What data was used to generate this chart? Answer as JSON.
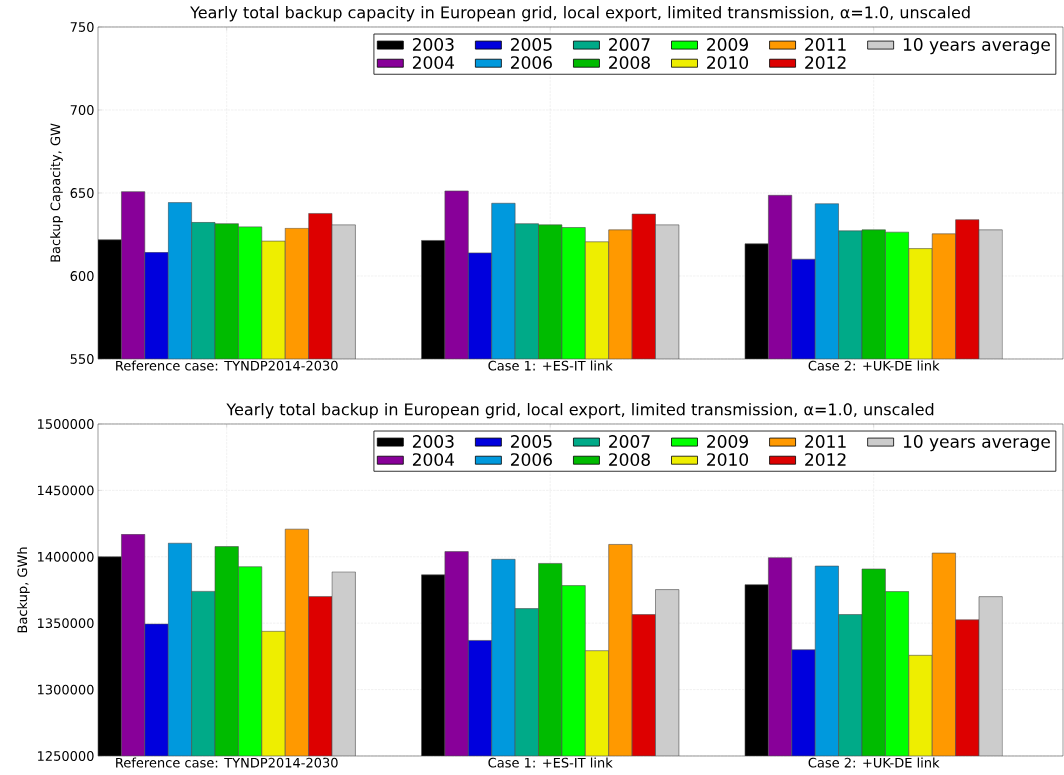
{
  "chart_data": [
    {
      "type": "bar",
      "title": "Yearly total backup capacity in European grid, local export, limited transmission, α=1.0, unscaled",
      "ylabel": "Backup Capacity, GW",
      "categories": [
        "Reference case: TYNDP2014-2030",
        "Case 1: +ES-IT link",
        "Case 2: +UK-DE link"
      ],
      "ylim": [
        550,
        750
      ],
      "yticks": [
        550,
        600,
        650,
        700,
        750
      ],
      "grid": true,
      "legend": "top right",
      "series": [
        {
          "name": "2003",
          "color": "#000000",
          "values": [
            621.8,
            621.4,
            619.4
          ]
        },
        {
          "name": "2004",
          "color": "#880099",
          "values": [
            650.8,
            651.2,
            648.6
          ]
        },
        {
          "name": "2005",
          "color": "#0000dd",
          "values": [
            614.3,
            613.9,
            610.1
          ]
        },
        {
          "name": "2006",
          "color": "#0099dd",
          "values": [
            644.2,
            643.8,
            643.5
          ]
        },
        {
          "name": "2007",
          "color": "#00aa88",
          "values": [
            632.3,
            631.5,
            627.2
          ]
        },
        {
          "name": "2008",
          "color": "#00bb00",
          "values": [
            631.5,
            630.8,
            627.8
          ]
        },
        {
          "name": "2009",
          "color": "#00ff00",
          "values": [
            629.6,
            629.2,
            626.4
          ]
        },
        {
          "name": "2010",
          "color": "#eeee00",
          "values": [
            621.0,
            620.6,
            616.5
          ]
        },
        {
          "name": "2011",
          "color": "#ff9900",
          "values": [
            628.8,
            627.8,
            625.4
          ]
        },
        {
          "name": "2012",
          "color": "#dd0000",
          "values": [
            637.7,
            637.3,
            633.9
          ]
        },
        {
          "name": "10 years average",
          "color": "#cccccc",
          "values": [
            630.8,
            630.8,
            627.8
          ]
        }
      ]
    },
    {
      "type": "bar",
      "title": "Yearly total backup in European grid, local export, limited transmission, α=1.0, unscaled",
      "ylabel": "Backup, GWh",
      "categories": [
        "Reference case: TYNDP2014-2030",
        "Case 1: +ES-IT link",
        "Case 2: +UK-DE link"
      ],
      "ylim": [
        1250000,
        1500000
      ],
      "yticks": [
        1250000,
        1300000,
        1350000,
        1400000,
        1450000,
        1500000
      ],
      "grid": true,
      "legend": "top right",
      "series": [
        {
          "name": "2003",
          "color": "#000000",
          "values": [
            1400000,
            1386400,
            1379000
          ]
        },
        {
          "name": "2004",
          "color": "#880099",
          "values": [
            1416900,
            1403900,
            1399300
          ]
        },
        {
          "name": "2005",
          "color": "#0000dd",
          "values": [
            1349400,
            1337000,
            1330000
          ]
        },
        {
          "name": "2006",
          "color": "#0099dd",
          "values": [
            1410200,
            1398100,
            1393000
          ]
        },
        {
          "name": "2007",
          "color": "#00aa88",
          "values": [
            1374000,
            1361000,
            1356500
          ]
        },
        {
          "name": "2008",
          "color": "#00bb00",
          "values": [
            1407700,
            1395000,
            1390800
          ]
        },
        {
          "name": "2009",
          "color": "#00ff00",
          "values": [
            1392500,
            1378300,
            1373800
          ]
        },
        {
          "name": "2010",
          "color": "#eeee00",
          "values": [
            1343900,
            1329300,
            1325800
          ]
        },
        {
          "name": "2011",
          "color": "#ff9900",
          "values": [
            1420800,
            1409300,
            1402800
          ]
        },
        {
          "name": "2012",
          "color": "#dd0000",
          "values": [
            1370100,
            1356500,
            1352500
          ]
        },
        {
          "name": "10 years average",
          "color": "#cccccc",
          "values": [
            1388600,
            1375300,
            1370000
          ]
        }
      ]
    }
  ]
}
